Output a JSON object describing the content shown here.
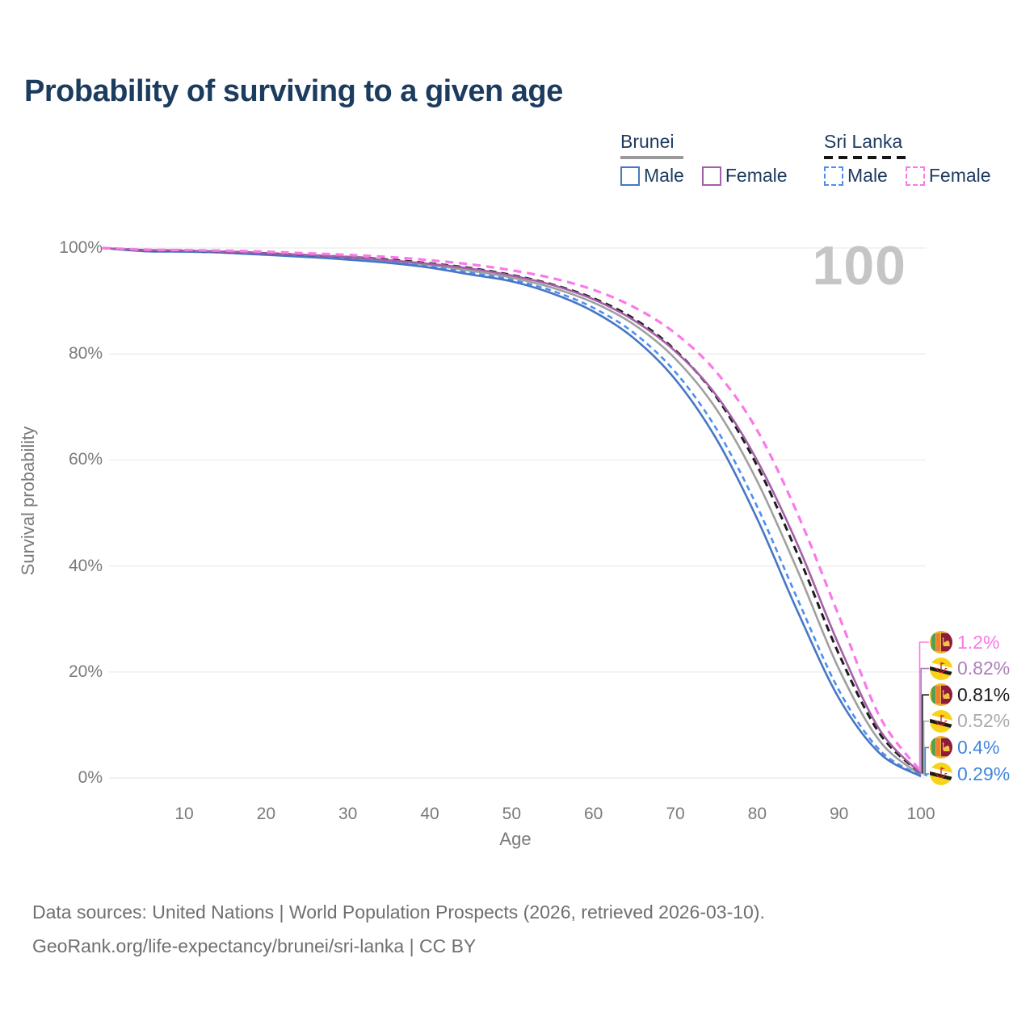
{
  "title": "Probability of surviving to a given age",
  "watermark": "100",
  "legend": {
    "groups": [
      {
        "label": "Brunei",
        "line_style": "solid",
        "underline_color": "#9a9a9a",
        "items": [
          {
            "label": "Male",
            "color": "#4677c6"
          },
          {
            "label": "Female",
            "color": "#a35fa8"
          }
        ]
      },
      {
        "label": "Sri Lanka",
        "line_style": "dashed",
        "underline_color": "#151515",
        "items": [
          {
            "label": "Male",
            "color": "#4f8df0"
          },
          {
            "label": "Female",
            "color": "#fb78e9"
          }
        ]
      }
    ]
  },
  "chart_data": {
    "type": "line",
    "title": "Probability of surviving to a given age",
    "xlabel": "Age",
    "ylabel": "Survival probability",
    "xlim": [
      0,
      100
    ],
    "ylim": [
      0,
      100
    ],
    "grid": "horizontal-only",
    "x_ticks": [
      10,
      20,
      30,
      40,
      50,
      60,
      70,
      80,
      90,
      100
    ],
    "y_ticks": [
      {
        "value": 100,
        "label": "100%"
      },
      {
        "value": 80,
        "label": "80%"
      },
      {
        "value": 60,
        "label": "60%"
      },
      {
        "value": 40,
        "label": "40%"
      },
      {
        "value": 20,
        "label": "20%"
      },
      {
        "value": 0,
        "label": "0%"
      }
    ],
    "x": [
      0,
      5,
      10,
      15,
      20,
      25,
      30,
      35,
      40,
      45,
      50,
      55,
      60,
      65,
      70,
      75,
      80,
      85,
      90,
      95,
      100
    ],
    "series": [
      {
        "name": "Brunei Both sexes",
        "country": "Brunei",
        "sex": "Both",
        "color": "#a0a0a0",
        "dash": "solid",
        "width": 2.6,
        "values": [
          100,
          99.5,
          99.4,
          99.2,
          98.9,
          98.5,
          98.1,
          97.5,
          96.8,
          95.7,
          94.4,
          92.5,
          89.7,
          85.5,
          79.1,
          69.6,
          56.0,
          38.9,
          20.5,
          6.9,
          0.52
        ]
      },
      {
        "name": "Sri Lanka Male",
        "country": "Sri Lanka",
        "sex": "Male",
        "color": "#4f8df0",
        "dash": "7 5",
        "width": 2.6,
        "values": [
          100,
          99.5,
          99.4,
          99.2,
          98.8,
          98.4,
          97.9,
          97.3,
          96.5,
          95.3,
          94.0,
          91.9,
          88.7,
          83.9,
          76.6,
          65.9,
          51.2,
          33.5,
          16.5,
          5.2,
          0.4
        ]
      },
      {
        "name": "Brunei Male",
        "country": "Brunei",
        "sex": "Male",
        "color": "#4677c6",
        "dash": "solid",
        "width": 2.6,
        "values": [
          100,
          99.4,
          99.3,
          99.1,
          98.7,
          98.3,
          97.8,
          97.2,
          96.3,
          95.0,
          93.7,
          91.4,
          88.0,
          82.9,
          75.2,
          64.0,
          48.9,
          31.2,
          15.0,
          4.6,
          0.29
        ]
      },
      {
        "name": "Sri Lanka Both sexes",
        "country": "Sri Lanka",
        "sex": "Both",
        "color": "#1c1c1c",
        "dash": "9 6",
        "width": 3,
        "values": [
          100,
          99.6,
          99.5,
          99.3,
          99.0,
          98.7,
          98.3,
          97.8,
          97.1,
          96.2,
          94.9,
          93.1,
          90.5,
          86.6,
          80.7,
          71.9,
          58.9,
          42.0,
          23.3,
          8.3,
          0.81
        ]
      },
      {
        "name": "Brunei Female",
        "country": "Brunei",
        "sex": "Female",
        "color": "#a35fa8",
        "dash": "solid",
        "width": 2.6,
        "values": [
          100,
          99.6,
          99.5,
          99.3,
          99.0,
          98.7,
          98.3,
          97.7,
          97.0,
          96.1,
          94.8,
          93.0,
          90.3,
          86.3,
          80.5,
          72.2,
          59.9,
          43.8,
          25.0,
          9.0,
          0.82
        ]
      },
      {
        "name": "Sri Lanka Female",
        "country": "Sri Lanka",
        "sex": "Female",
        "color": "#fb78e9",
        "dash": "10 7",
        "width": 3.2,
        "values": [
          100,
          99.7,
          99.6,
          99.5,
          99.3,
          99.0,
          98.7,
          98.3,
          97.7,
          96.9,
          95.8,
          94.3,
          92.1,
          88.8,
          83.9,
          76.6,
          65.6,
          49.6,
          30.5,
          11.5,
          1.2
        ]
      }
    ]
  },
  "end_labels": [
    {
      "value": "1.2%",
      "series": "Sri Lanka Female",
      "flag": "sri-lanka",
      "color": "#fb78e9"
    },
    {
      "value": "0.82%",
      "series": "Brunei Female",
      "flag": "brunei",
      "color": "#ad7fb8"
    },
    {
      "value": "0.81%",
      "series": "Sri Lanka Both sexes",
      "flag": "sri-lanka",
      "color": "#1c1c1c"
    },
    {
      "value": "0.52%",
      "series": "Brunei Both sexes",
      "flag": "brunei",
      "color": "#ababab"
    },
    {
      "value": "0.4%",
      "series": "Sri Lanka Male",
      "flag": "sri-lanka",
      "color": "#4285dd"
    },
    {
      "value": "0.29%",
      "series": "Brunei Male",
      "flag": "brunei",
      "color": "#4285dd"
    }
  ],
  "footer": {
    "line1": "Data sources: United Nations | World Population Prospects (2026, retrieved 2026-03-10).",
    "line2": "GeoRank.org/life-expectancy/brunei/sri-lanka | CC BY"
  }
}
